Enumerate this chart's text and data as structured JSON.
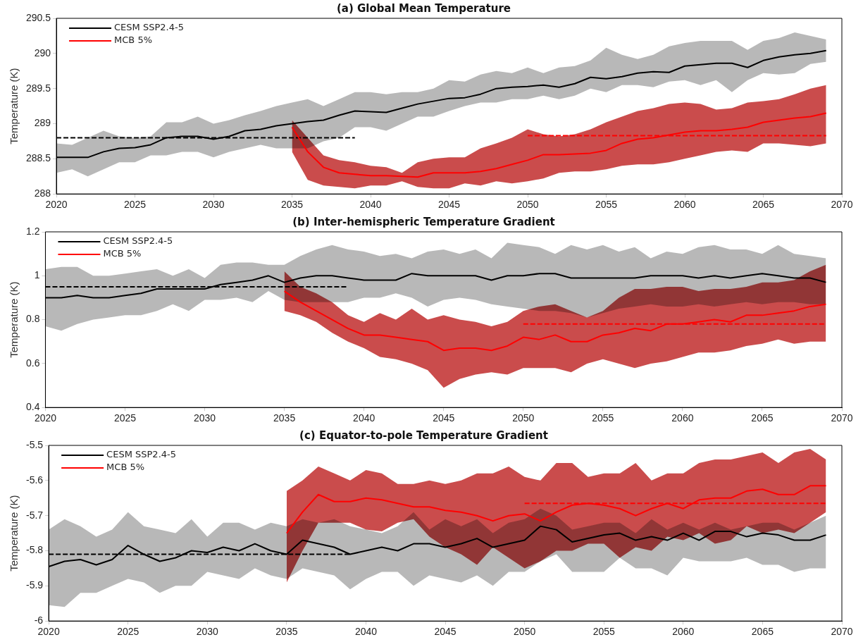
{
  "chart_data": [
    {
      "type": "line",
      "title": "(a) Global Mean Temperature",
      "ylabel": "Temperature (K)",
      "xlim": [
        2020,
        2070
      ],
      "xticks": [
        2020,
        2025,
        2030,
        2035,
        2040,
        2045,
        2050,
        2055,
        2060,
        2065,
        2070
      ],
      "ylim": [
        288,
        290.5
      ],
      "yticks": [
        288,
        288.5,
        289,
        289.5,
        290,
        290.5
      ],
      "legend": "top left",
      "x": [
        2020,
        2021,
        2022,
        2023,
        2024,
        2025,
        2026,
        2027,
        2028,
        2029,
        2030,
        2031,
        2032,
        2033,
        2034,
        2035,
        2036,
        2037,
        2038,
        2039,
        2040,
        2041,
        2042,
        2043,
        2044,
        2045,
        2046,
        2047,
        2048,
        2049,
        2050,
        2051,
        2052,
        2053,
        2054,
        2055,
        2056,
        2057,
        2058,
        2059,
        2060,
        2061,
        2062,
        2063,
        2064,
        2065,
        2066,
        2067,
        2068,
        2069
      ],
      "series": [
        {
          "name": "CESM SSP2.4-5",
          "color": "#000000",
          "values": [
            288.52,
            288.52,
            288.52,
            288.6,
            288.65,
            288.66,
            288.7,
            288.8,
            288.82,
            288.82,
            288.78,
            288.82,
            288.9,
            288.92,
            288.97,
            289.0,
            289.03,
            289.05,
            289.12,
            289.18,
            289.17,
            289.16,
            289.22,
            289.28,
            289.32,
            289.36,
            289.37,
            289.42,
            289.5,
            289.52,
            289.53,
            289.55,
            289.52,
            289.57,
            289.66,
            289.64,
            289.67,
            289.72,
            289.74,
            289.73,
            289.82,
            289.84,
            289.86,
            289.86,
            289.8,
            289.9,
            289.95,
            289.98,
            290.0,
            290.04
          ],
          "upper": [
            288.72,
            288.7,
            288.8,
            288.9,
            288.82,
            288.8,
            288.82,
            289.02,
            289.02,
            289.1,
            289.0,
            289.05,
            289.12,
            289.18,
            289.25,
            289.3,
            289.35,
            289.25,
            289.35,
            289.45,
            289.45,
            289.42,
            289.45,
            289.45,
            289.5,
            289.62,
            289.6,
            289.7,
            289.75,
            289.72,
            289.8,
            289.72,
            289.8,
            289.82,
            289.9,
            290.08,
            289.98,
            289.92,
            289.98,
            290.1,
            290.15,
            290.18,
            290.18,
            290.18,
            290.05,
            290.18,
            290.22,
            290.3,
            290.25,
            290.2
          ],
          "lower": [
            288.3,
            288.35,
            288.25,
            288.35,
            288.45,
            288.45,
            288.55,
            288.55,
            288.6,
            288.6,
            288.52,
            288.6,
            288.65,
            288.7,
            288.65,
            288.65,
            288.65,
            288.75,
            288.8,
            288.95,
            288.95,
            288.9,
            289.0,
            289.1,
            289.1,
            289.18,
            289.25,
            289.3,
            289.3,
            289.35,
            289.35,
            289.4,
            289.35,
            289.4,
            289.5,
            289.45,
            289.55,
            289.55,
            289.52,
            289.6,
            289.62,
            289.55,
            289.62,
            289.45,
            289.62,
            289.72,
            289.7,
            289.72,
            289.85,
            289.88
          ]
        },
        {
          "name": "MCB 5%",
          "color": "#ff0000",
          "x": [
            2035,
            2036,
            2037,
            2038,
            2039,
            2040,
            2041,
            2042,
            2043,
            2044,
            2045,
            2046,
            2047,
            2048,
            2049,
            2050,
            2051,
            2052,
            2053,
            2054,
            2055,
            2056,
            2057,
            2058,
            2059,
            2060,
            2061,
            2062,
            2063,
            2064,
            2065,
            2066,
            2067,
            2068,
            2069
          ],
          "values": [
            288.95,
            288.6,
            288.38,
            288.3,
            288.28,
            288.26,
            288.26,
            288.25,
            288.24,
            288.3,
            288.3,
            288.3,
            288.32,
            288.36,
            288.42,
            288.48,
            288.56,
            288.56,
            288.57,
            288.58,
            288.62,
            288.72,
            288.78,
            288.8,
            288.84,
            288.88,
            288.9,
            288.9,
            288.92,
            288.95,
            289.02,
            289.05,
            289.08,
            289.1,
            289.15
          ],
          "upper": [
            289.05,
            288.8,
            288.55,
            288.48,
            288.45,
            288.4,
            288.38,
            288.3,
            288.45,
            288.5,
            288.52,
            288.52,
            288.65,
            288.72,
            288.8,
            288.92,
            288.85,
            288.82,
            288.85,
            288.92,
            289.02,
            289.1,
            289.18,
            289.22,
            289.28,
            289.3,
            289.28,
            289.2,
            289.22,
            289.3,
            289.32,
            289.35,
            289.42,
            289.5,
            289.55
          ],
          "lower": [
            288.6,
            288.2,
            288.12,
            288.1,
            288.08,
            288.12,
            288.12,
            288.18,
            288.1,
            288.08,
            288.08,
            288.15,
            288.12,
            288.18,
            288.15,
            288.18,
            288.22,
            288.3,
            288.32,
            288.32,
            288.35,
            288.4,
            288.42,
            288.42,
            288.45,
            288.5,
            288.55,
            288.6,
            288.62,
            288.6,
            288.72,
            288.72,
            288.7,
            288.68,
            288.72
          ]
        },
        {
          "type": "line",
          "color": "#000000",
          "line_style": "dashed",
          "x": [
            2020,
            2039
          ],
          "values": [
            288.8,
            288.8
          ]
        },
        {
          "type": "line",
          "color": "#ff0000",
          "line_style": "dashed",
          "x": [
            2050,
            2069
          ],
          "values": [
            288.83,
            288.83
          ]
        }
      ]
    },
    {
      "type": "line",
      "title": "(b) Inter-hemispheric Temperature Gradient",
      "ylabel": "Temperature (K)",
      "xlim": [
        2020,
        2070
      ],
      "xticks": [
        2020,
        2025,
        2030,
        2035,
        2040,
        2045,
        2050,
        2055,
        2060,
        2065,
        2070
      ],
      "ylim": [
        0.4,
        1.2
      ],
      "yticks": [
        0.4,
        0.6,
        0.8,
        1,
        1.2
      ],
      "legend": "top left",
      "x": [
        2020,
        2021,
        2022,
        2023,
        2024,
        2025,
        2026,
        2027,
        2028,
        2029,
        2030,
        2031,
        2032,
        2033,
        2034,
        2035,
        2036,
        2037,
        2038,
        2039,
        2040,
        2041,
        2042,
        2043,
        2044,
        2045,
        2046,
        2047,
        2048,
        2049,
        2050,
        2051,
        2052,
        2053,
        2054,
        2055,
        2056,
        2057,
        2058,
        2059,
        2060,
        2061,
        2062,
        2063,
        2064,
        2065,
        2066,
        2067,
        2068,
        2069
      ],
      "series": [
        {
          "name": "CESM SSP2.4-5",
          "color": "#000000",
          "values": [
            0.9,
            0.9,
            0.91,
            0.9,
            0.9,
            0.91,
            0.92,
            0.94,
            0.94,
            0.94,
            0.94,
            0.96,
            0.97,
            0.98,
            1.0,
            0.97,
            0.99,
            1.0,
            1.0,
            0.99,
            0.98,
            0.98,
            0.98,
            1.01,
            1.0,
            1.0,
            1.0,
            1.0,
            0.98,
            1.0,
            1.0,
            1.01,
            1.01,
            0.99,
            0.99,
            0.99,
            0.99,
            0.99,
            1.0,
            1.0,
            1.0,
            0.99,
            1.0,
            0.99,
            1.0,
            1.01,
            1.0,
            0.99,
            0.99,
            0.97
          ],
          "upper": [
            1.03,
            1.04,
            1.04,
            1.0,
            1.0,
            1.01,
            1.02,
            1.03,
            1.0,
            1.03,
            0.99,
            1.05,
            1.06,
            1.06,
            1.05,
            1.05,
            1.09,
            1.12,
            1.14,
            1.12,
            1.11,
            1.09,
            1.1,
            1.08,
            1.11,
            1.12,
            1.1,
            1.12,
            1.08,
            1.15,
            1.14,
            1.13,
            1.1,
            1.14,
            1.12,
            1.14,
            1.11,
            1.13,
            1.08,
            1.11,
            1.1,
            1.13,
            1.14,
            1.12,
            1.12,
            1.1,
            1.14,
            1.1,
            1.09,
            1.08
          ],
          "lower": [
            0.77,
            0.75,
            0.78,
            0.8,
            0.81,
            0.82,
            0.82,
            0.84,
            0.87,
            0.84,
            0.89,
            0.89,
            0.9,
            0.88,
            0.93,
            0.89,
            0.88,
            0.88,
            0.88,
            0.88,
            0.9,
            0.9,
            0.92,
            0.9,
            0.86,
            0.89,
            0.9,
            0.89,
            0.87,
            0.86,
            0.85,
            0.84,
            0.84,
            0.83,
            0.81,
            0.83,
            0.85,
            0.86,
            0.87,
            0.86,
            0.86,
            0.87,
            0.86,
            0.87,
            0.88,
            0.87,
            0.88,
            0.88,
            0.87,
            0.87
          ]
        },
        {
          "name": "MCB 5%",
          "color": "#ff0000",
          "x": [
            2035,
            2036,
            2037,
            2038,
            2039,
            2040,
            2041,
            2042,
            2043,
            2044,
            2045,
            2046,
            2047,
            2048,
            2049,
            2050,
            2051,
            2052,
            2053,
            2054,
            2055,
            2056,
            2057,
            2058,
            2059,
            2060,
            2061,
            2062,
            2063,
            2064,
            2065,
            2066,
            2067,
            2068,
            2069
          ],
          "values": [
            0.93,
            0.88,
            0.84,
            0.8,
            0.76,
            0.73,
            0.73,
            0.72,
            0.71,
            0.7,
            0.66,
            0.67,
            0.67,
            0.66,
            0.68,
            0.72,
            0.71,
            0.73,
            0.7,
            0.7,
            0.73,
            0.74,
            0.76,
            0.75,
            0.78,
            0.78,
            0.79,
            0.8,
            0.79,
            0.82,
            0.82,
            0.83,
            0.84,
            0.86,
            0.87
          ],
          "upper": [
            1.02,
            0.95,
            0.92,
            0.88,
            0.82,
            0.79,
            0.83,
            0.8,
            0.85,
            0.8,
            0.82,
            0.8,
            0.79,
            0.77,
            0.79,
            0.84,
            0.86,
            0.87,
            0.84,
            0.81,
            0.84,
            0.9,
            0.94,
            0.94,
            0.95,
            0.95,
            0.93,
            0.94,
            0.94,
            0.95,
            0.97,
            0.97,
            0.98,
            1.02,
            1.05
          ],
          "lower": [
            0.84,
            0.82,
            0.79,
            0.74,
            0.7,
            0.67,
            0.63,
            0.62,
            0.6,
            0.57,
            0.49,
            0.53,
            0.55,
            0.56,
            0.55,
            0.58,
            0.58,
            0.58,
            0.56,
            0.6,
            0.62,
            0.6,
            0.58,
            0.6,
            0.61,
            0.63,
            0.65,
            0.65,
            0.66,
            0.68,
            0.69,
            0.71,
            0.69,
            0.7,
            0.7
          ]
        },
        {
          "type": "line",
          "color": "#000000",
          "line_style": "dashed",
          "x": [
            2020,
            2039
          ],
          "values": [
            0.95,
            0.95
          ]
        },
        {
          "type": "line",
          "color": "#ff0000",
          "line_style": "dashed",
          "x": [
            2050,
            2069
          ],
          "values": [
            0.78,
            0.78
          ]
        }
      ]
    },
    {
      "type": "line",
      "title": "(c) Equator-to-pole Temperature Gradient",
      "ylabel": "Temperature (K)",
      "xlim": [
        2020,
        2070
      ],
      "xticks": [
        2020,
        2025,
        2030,
        2035,
        2040,
        2045,
        2050,
        2055,
        2060,
        2065,
        2070
      ],
      "ylim": [
        -6,
        -5.5
      ],
      "yticks": [
        -6,
        -5.9,
        -5.8,
        -5.7,
        -5.6,
        -5.5
      ],
      "legend": "top left",
      "x": [
        2020,
        2021,
        2022,
        2023,
        2024,
        2025,
        2026,
        2027,
        2028,
        2029,
        2030,
        2031,
        2032,
        2033,
        2034,
        2035,
        2036,
        2037,
        2038,
        2039,
        2040,
        2041,
        2042,
        2043,
        2044,
        2045,
        2046,
        2047,
        2048,
        2049,
        2050,
        2051,
        2052,
        2053,
        2054,
        2055,
        2056,
        2057,
        2058,
        2059,
        2060,
        2061,
        2062,
        2063,
        2064,
        2065,
        2066,
        2067,
        2068,
        2069
      ],
      "series": [
        {
          "name": "CESM SSP2.4-5",
          "color": "#000000",
          "values": [
            -5.845,
            -5.83,
            -5.825,
            -5.84,
            -5.825,
            -5.785,
            -5.81,
            -5.83,
            -5.82,
            -5.8,
            -5.805,
            -5.79,
            -5.8,
            -5.78,
            -5.8,
            -5.81,
            -5.77,
            -5.78,
            -5.79,
            -5.81,
            -5.8,
            -5.79,
            -5.8,
            -5.78,
            -5.78,
            -5.79,
            -5.78,
            -5.765,
            -5.79,
            -5.78,
            -5.77,
            -5.73,
            -5.74,
            -5.775,
            -5.765,
            -5.755,
            -5.75,
            -5.77,
            -5.76,
            -5.77,
            -5.75,
            -5.77,
            -5.745,
            -5.745,
            -5.76,
            -5.75,
            -5.755,
            -5.77,
            -5.77,
            -5.755
          ],
          "upper": [
            -5.74,
            -5.71,
            -5.73,
            -5.76,
            -5.74,
            -5.69,
            -5.73,
            -5.74,
            -5.75,
            -5.71,
            -5.76,
            -5.72,
            -5.72,
            -5.74,
            -5.72,
            -5.73,
            -5.71,
            -5.72,
            -5.71,
            -5.73,
            -5.74,
            -5.75,
            -5.73,
            -5.69,
            -5.74,
            -5.71,
            -5.73,
            -5.71,
            -5.75,
            -5.72,
            -5.71,
            -5.68,
            -5.7,
            -5.74,
            -5.73,
            -5.72,
            -5.72,
            -5.75,
            -5.71,
            -5.74,
            -5.72,
            -5.74,
            -5.72,
            -5.74,
            -5.73,
            -5.72,
            -5.72,
            -5.74,
            -5.72,
            -5.7
          ],
          "lower": [
            -5.955,
            -5.96,
            -5.92,
            -5.92,
            -5.9,
            -5.88,
            -5.89,
            -5.92,
            -5.9,
            -5.9,
            -5.86,
            -5.87,
            -5.88,
            -5.85,
            -5.87,
            -5.88,
            -5.85,
            -5.86,
            -5.87,
            -5.91,
            -5.88,
            -5.86,
            -5.86,
            -5.9,
            -5.87,
            -5.88,
            -5.89,
            -5.87,
            -5.9,
            -5.86,
            -5.86,
            -5.83,
            -5.81,
            -5.86,
            -5.86,
            -5.86,
            -5.82,
            -5.85,
            -5.85,
            -5.87,
            -5.82,
            -5.83,
            -5.83,
            -5.83,
            -5.82,
            -5.84,
            -5.84,
            -5.86,
            -5.85,
            -5.85
          ]
        },
        {
          "name": "MCB 5%",
          "color": "#ff0000",
          "x": [
            2035,
            2036,
            2037,
            2038,
            2039,
            2040,
            2041,
            2042,
            2043,
            2044,
            2045,
            2046,
            2047,
            2048,
            2049,
            2050,
            2051,
            2052,
            2053,
            2054,
            2055,
            2056,
            2057,
            2058,
            2059,
            2060,
            2061,
            2062,
            2063,
            2064,
            2065,
            2066,
            2067,
            2068,
            2069
          ],
          "values": [
            -5.75,
            -5.69,
            -5.64,
            -5.66,
            -5.66,
            -5.65,
            -5.655,
            -5.665,
            -5.675,
            -5.675,
            -5.685,
            -5.69,
            -5.7,
            -5.715,
            -5.7,
            -5.695,
            -5.715,
            -5.69,
            -5.67,
            -5.665,
            -5.67,
            -5.68,
            -5.7,
            -5.68,
            -5.665,
            -5.68,
            -5.655,
            -5.65,
            -5.65,
            -5.63,
            -5.625,
            -5.64,
            -5.64,
            -5.615,
            -5.615
          ],
          "upper": [
            -5.63,
            -5.6,
            -5.56,
            -5.58,
            -5.6,
            -5.57,
            -5.58,
            -5.61,
            -5.61,
            -5.6,
            -5.61,
            -5.6,
            -5.58,
            -5.58,
            -5.56,
            -5.59,
            -5.6,
            -5.55,
            -5.55,
            -5.59,
            -5.58,
            -5.58,
            -5.55,
            -5.6,
            -5.58,
            -5.58,
            -5.55,
            -5.54,
            -5.54,
            -5.53,
            -5.52,
            -5.55,
            -5.52,
            -5.51,
            -5.54
          ],
          "lower": [
            -5.89,
            -5.8,
            -5.72,
            -5.72,
            -5.72,
            -5.74,
            -5.745,
            -5.72,
            -5.71,
            -5.76,
            -5.79,
            -5.81,
            -5.84,
            -5.79,
            -5.82,
            -5.85,
            -5.83,
            -5.8,
            -5.8,
            -5.78,
            -5.78,
            -5.82,
            -5.79,
            -5.8,
            -5.76,
            -5.77,
            -5.75,
            -5.78,
            -5.77,
            -5.73,
            -5.75,
            -5.74,
            -5.75,
            -5.72,
            -5.69
          ]
        },
        {
          "type": "line",
          "color": "#000000",
          "line_style": "dashed",
          "x": [
            2020,
            2039
          ],
          "values": [
            -5.81,
            -5.81
          ]
        },
        {
          "type": "line",
          "color": "#ff0000",
          "line_style": "dashed",
          "x": [
            2050,
            2069
          ],
          "values": [
            -5.665,
            -5.665
          ]
        }
      ]
    }
  ]
}
